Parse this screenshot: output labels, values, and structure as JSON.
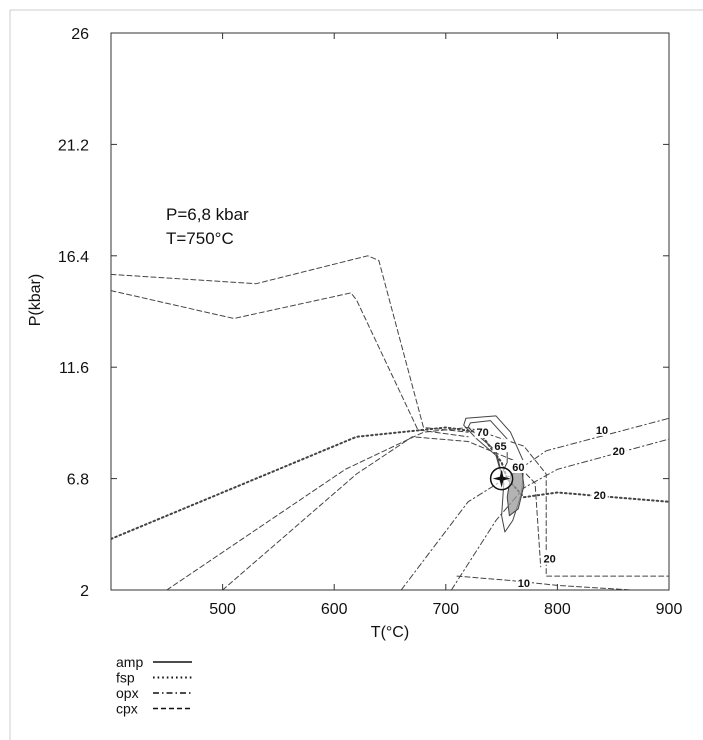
{
  "chart_data": {
    "type": "line",
    "xlabel": "T(°C)",
    "ylabel": "P(kbar)",
    "xlim": [
      400,
      900
    ],
    "ylim": [
      2,
      26
    ],
    "x_ticks": [
      500,
      600,
      700,
      800,
      900
    ],
    "y_ticks": [
      2,
      6.8,
      11.6,
      16.4,
      21.2,
      26
    ],
    "x_tick_labels": [
      "500",
      "600",
      "700",
      "800",
      "900"
    ],
    "y_tick_labels": [
      "2",
      "6.8",
      "11.6",
      "16.4",
      "21.2",
      "26"
    ],
    "annotation": {
      "line1": "P=6,8 kbar",
      "line2": "T=750°C"
    },
    "point": {
      "x": 750,
      "y": 6.8
    },
    "legend": [
      {
        "label": "amp",
        "style": "solid"
      },
      {
        "label": "fsp",
        "style": "dotted"
      },
      {
        "label": "opx",
        "style": "dashdot"
      },
      {
        "label": "cpx",
        "style": "dashed"
      }
    ],
    "contours": [
      {
        "mineral": "cpx",
        "points": [
          [
            400,
            15.6
          ],
          [
            530,
            15.2
          ],
          [
            630,
            16.4
          ],
          [
            640,
            16.2
          ],
          [
            680,
            9.0
          ],
          [
            720,
            8.8
          ]
        ]
      },
      {
        "mineral": "cpx",
        "points": [
          [
            400,
            14.9
          ],
          [
            510,
            13.7
          ],
          [
            615,
            14.8
          ],
          [
            620,
            14.5
          ],
          [
            675,
            8.9
          ],
          [
            720,
            8.6
          ]
        ]
      },
      {
        "mineral": "cpx",
        "points": [
          [
            450,
            2.0
          ],
          [
            610,
            7.2
          ],
          [
            680,
            8.8
          ],
          [
            720,
            9.0
          ],
          [
            770,
            8.2
          ],
          [
            790,
            7.0
          ],
          [
            790,
            2.6
          ],
          [
            900,
            2.6
          ]
        ],
        "label": "20",
        "label_x": 793,
        "label_y": 3.35
      },
      {
        "mineral": "cpx",
        "points": [
          [
            500,
            2.0
          ],
          [
            620,
            7.0
          ],
          [
            670,
            8.6
          ],
          [
            720,
            8.4
          ],
          [
            760,
            7.6
          ],
          [
            780,
            6.6
          ],
          [
            785,
            3.0
          ]
        ]
      },
      {
        "mineral": "cpx",
        "points": [
          [
            710,
            2.6
          ],
          [
            760,
            2.4
          ],
          [
            800,
            2.2
          ],
          [
            900,
            1.9
          ]
        ],
        "label": "10",
        "label_x": 770,
        "label_y": 2.3
      },
      {
        "mineral": "fsp",
        "points": [
          [
            400,
            4.2
          ],
          [
            620,
            8.6
          ],
          [
            700,
            9.0
          ],
          [
            730,
            8.8
          ],
          [
            750,
            7.5
          ],
          [
            755,
            6.8
          ],
          [
            770,
            6.0
          ],
          [
            800,
            6.2
          ],
          [
            850,
            6.0
          ],
          [
            900,
            5.8
          ]
        ],
        "label": "20",
        "label_x": 838,
        "label_y": 6.1
      },
      {
        "mineral": "opx",
        "points": [
          [
            660,
            2.0
          ],
          [
            720,
            5.8
          ],
          [
            760,
            7.0
          ],
          [
            790,
            8.0
          ],
          [
            900,
            9.4
          ]
        ],
        "label": "10",
        "label_x": 840,
        "label_y": 8.9
      },
      {
        "mineral": "opx",
        "points": [
          [
            705,
            2.0
          ],
          [
            745,
            5.0
          ],
          [
            770,
            6.4
          ],
          [
            800,
            7.2
          ],
          [
            900,
            8.5
          ]
        ],
        "label": "20",
        "label_x": 855,
        "label_y": 8.0
      },
      {
        "mineral": "amp",
        "points": [
          [
            722,
            9.2
          ],
          [
            740,
            9.3
          ],
          [
            755,
            8.5
          ],
          [
            755,
            7.8
          ],
          [
            755,
            7.5
          ],
          [
            750,
            7.0
          ],
          [
            745,
            8.0
          ],
          [
            730,
            8.6
          ],
          [
            720,
            9.0
          ],
          [
            722,
            9.2
          ]
        ],
        "label": "70",
        "label_x": 733,
        "label_y": 8.8
      },
      {
        "mineral": "amp",
        "points": [
          [
            718,
            9.4
          ],
          [
            745,
            9.5
          ],
          [
            758,
            8.8
          ],
          [
            770,
            7.5
          ],
          [
            768,
            6.2
          ],
          [
            760,
            5.0
          ],
          [
            753,
            4.5
          ],
          [
            750,
            5.2
          ],
          [
            752,
            6.6
          ],
          [
            745,
            7.8
          ],
          [
            728,
            8.5
          ],
          [
            716,
            9.1
          ],
          [
            718,
            9.4
          ]
        ],
        "label": "65",
        "label_x": 749,
        "label_y": 8.2
      },
      {
        "mineral": "amp",
        "points": [
          [
            755,
            6.0
          ],
          [
            760,
            7.5
          ],
          [
            768,
            7.2
          ],
          [
            770,
            6.5
          ],
          [
            765,
            5.5
          ],
          [
            757,
            5.2
          ],
          [
            755,
            6.0
          ]
        ],
        "label": "60",
        "label_x": 765,
        "label_y": 7.3
      }
    ]
  }
}
